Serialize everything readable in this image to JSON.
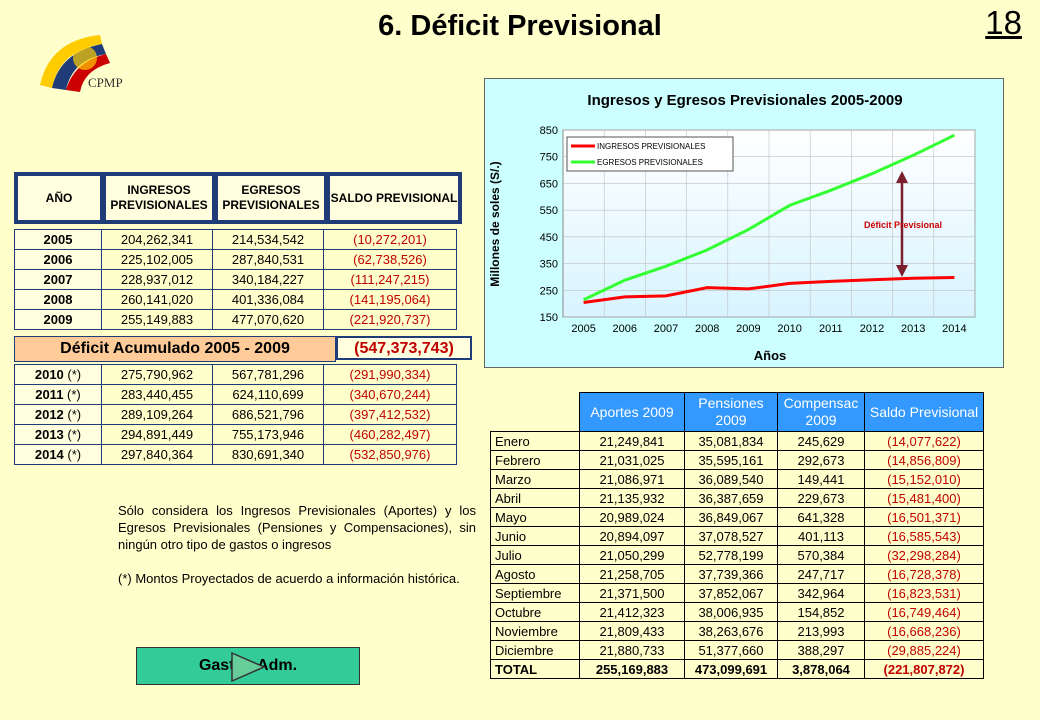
{
  "title": "6. Déficit Previsional",
  "page_number": "18",
  "logo_text": "CPMP",
  "left_table": {
    "headers": [
      "AÑO",
      "INGRESOS PREVISIONALES",
      "EGRESOS PREVISIONALES",
      "SALDO PREVISIONAL"
    ],
    "rows": [
      {
        "year": "2005",
        "ingresos": "204,262,341",
        "egresos": "214,534,542",
        "saldo": "(10,272,201)"
      },
      {
        "year": "2006",
        "ingresos": "225,102,005",
        "egresos": "287,840,531",
        "saldo": "(62,738,526)"
      },
      {
        "year": "2007",
        "ingresos": "228,937,012",
        "egresos": "340,184,227",
        "saldo": "(111,247,215)"
      },
      {
        "year": "2008",
        "ingresos": "260,141,020",
        "egresos": "401,336,084",
        "saldo": "(141,195,064)"
      },
      {
        "year": "2009",
        "ingresos": "255,149,883",
        "egresos": "477,070,620",
        "saldo": "(221,920,737)"
      }
    ],
    "accumulated_label": "Déficit Acumulado 2005 - 2009",
    "accumulated_value": "(547,373,743)",
    "projected_rows": [
      {
        "year": "2010",
        "mark": "(*)",
        "ingresos": "275,790,962",
        "egresos": "567,781,296",
        "saldo": "(291,990,334)"
      },
      {
        "year": "2011",
        "mark": "(*)",
        "ingresos": "283,440,455",
        "egresos": "624,110,699",
        "saldo": "(340,670,244)"
      },
      {
        "year": "2012",
        "mark": "(*)",
        "ingresos": "289,109,264",
        "egresos": "686,521,796",
        "saldo": "(397,412,532)"
      },
      {
        "year": "2013",
        "mark": "(*)",
        "ingresos": "294,891,449",
        "egresos": "755,173,946",
        "saldo": "(460,282,497)"
      },
      {
        "year": "2014",
        "mark": "(*)",
        "ingresos": "297,840,364",
        "egresos": "830,691,340",
        "saldo": "(532,850,976)"
      }
    ]
  },
  "note": "Sólo considera los Ingresos Previsionales (Aportes) y los Egresos Previsionales (Pensiones y Compensaciones), sin ningún otro tipo de gastos o ingresos",
  "note2": "(*) Montos Proyectados de acuerdo a información histórica.",
  "button_label": "Gastos Adm.",
  "chart_data": {
    "type": "line",
    "title": "Ingresos y Egresos Previsionales 2005-2009",
    "xlabel": "Años",
    "ylabel": "Millones de soles (S/.)",
    "x": [
      "2005",
      "2006",
      "2007",
      "2008",
      "2009",
      "2010",
      "2011",
      "2012",
      "2013",
      "2014"
    ],
    "ylim": [
      150,
      850
    ],
    "yticks": [
      "150",
      "250",
      "350",
      "450",
      "550",
      "650",
      "750",
      "850"
    ],
    "legend_position": "top-left",
    "annotation": "Déficit Previsional",
    "series": [
      {
        "name": "INGRESOS PREVISIONALES",
        "color": "#ff0000",
        "values": [
          204.3,
          225.1,
          228.9,
          260.1,
          255.1,
          275.8,
          283.4,
          289.1,
          294.9,
          297.8
        ]
      },
      {
        "name": "EGRESOS PREVISIONALES",
        "color": "#33ff33",
        "values": [
          214.5,
          287.8,
          340.2,
          401.3,
          477.1,
          567.8,
          624.1,
          686.5,
          755.2,
          830.7
        ]
      }
    ]
  },
  "right_table": {
    "headers": [
      "Aportes 2009",
      "Pensiones 2009",
      "Compensac 2009",
      "Saldo Previsional"
    ],
    "rows": [
      {
        "month": "Enero",
        "aportes": "21,249,841",
        "pensiones": "35,081,834",
        "compensac": "245,629",
        "saldo": "(14,077,622)"
      },
      {
        "month": "Febrero",
        "aportes": "21,031,025",
        "pensiones": "35,595,161",
        "compensac": "292,673",
        "saldo": "(14,856,809)"
      },
      {
        "month": "Marzo",
        "aportes": "21,086,971",
        "pensiones": "36,089,540",
        "compensac": "149,441",
        "saldo": "(15,152,010)"
      },
      {
        "month": "Abril",
        "aportes": "21,135,932",
        "pensiones": "36,387,659",
        "compensac": "229,673",
        "saldo": "(15,481,400)"
      },
      {
        "month": "Mayo",
        "aportes": "20,989,024",
        "pensiones": "36,849,067",
        "compensac": "641,328",
        "saldo": "(16,501,371)"
      },
      {
        "month": "Junio",
        "aportes": "20,894,097",
        "pensiones": "37,078,527",
        "compensac": "401,113",
        "saldo": "(16,585,543)"
      },
      {
        "month": "Julio",
        "aportes": "21,050,299",
        "pensiones": "52,778,199",
        "compensac": "570,384",
        "saldo": "(32,298,284)"
      },
      {
        "month": "Agosto",
        "aportes": "21,258,705",
        "pensiones": "37,739,366",
        "compensac": "247,717",
        "saldo": "(16,728,378)"
      },
      {
        "month": "Septiembre",
        "aportes": "21,371,500",
        "pensiones": "37,852,067",
        "compensac": "342,964",
        "saldo": "(16,823,531)"
      },
      {
        "month": "Octubre",
        "aportes": "21,412,323",
        "pensiones": "38,006,935",
        "compensac": "154,852",
        "saldo": "(16,749,464)"
      },
      {
        "month": "Noviembre",
        "aportes": "21,809,433",
        "pensiones": "38,263,676",
        "compensac": "213,993",
        "saldo": "(16,668,236)"
      },
      {
        "month": "Diciembre",
        "aportes": "21,880,733",
        "pensiones": "51,377,660",
        "compensac": "388,297",
        "saldo": "(29,885,224)"
      }
    ],
    "total": {
      "month": "TOTAL",
      "aportes": "255,169,883",
      "pensiones": "473,099,691",
      "compensac": "3,878,064",
      "saldo": "(221,807,872)"
    }
  },
  "colors": {
    "background": "#ffffcc",
    "table_border": "#1f3c78",
    "negative": "#c00000",
    "header_blue": "#3399ff",
    "button": "#33cc99"
  }
}
